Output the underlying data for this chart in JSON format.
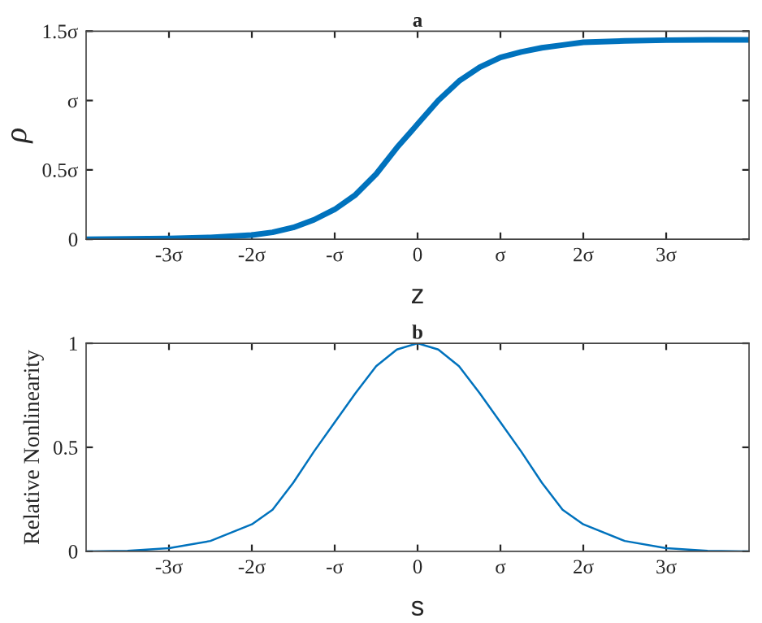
{
  "chart_data": [
    {
      "type": "line",
      "title": "a",
      "xlabel": "z",
      "ylabel": "ρ",
      "x": [
        -4,
        -3.5,
        -3,
        -2.5,
        -2,
        -1.75,
        -1.5,
        -1.25,
        -1,
        -0.75,
        -0.5,
        -0.25,
        0,
        0.25,
        0.5,
        0.75,
        1,
        1.25,
        1.5,
        1.75,
        2,
        2.5,
        3,
        3.5,
        4
      ],
      "series": [
        {
          "color": "#0072bd",
          "values": [
            0,
            0.003,
            0.006,
            0.013,
            0.03,
            0.05,
            0.085,
            0.14,
            0.215,
            0.32,
            0.47,
            0.66,
            0.83,
            1.0,
            1.14,
            1.24,
            1.31,
            1.35,
            1.38,
            1.4,
            1.42,
            1.43,
            1.435,
            1.437,
            1.437
          ]
        }
      ],
      "xlim": [
        -4,
        4
      ],
      "ylim": [
        0,
        1.5
      ],
      "xticks": [
        {
          "value": -3,
          "label": "-3σ"
        },
        {
          "value": -2,
          "label": "-2σ"
        },
        {
          "value": -1,
          "label": "-σ"
        },
        0,
        {
          "value": 1,
          "label": "σ"
        },
        {
          "value": 2,
          "label": "2σ"
        },
        {
          "value": 3,
          "label": "3σ"
        }
      ],
      "yticks": [
        0,
        {
          "value": 0.5,
          "label": "0.5σ"
        },
        {
          "value": 1,
          "label": "σ"
        },
        {
          "value": 1.5,
          "label": "1.5σ"
        }
      ]
    },
    {
      "type": "line",
      "title": "b",
      "xlabel": "s",
      "ylabel": "Relative Nonlinearity",
      "x": [
        -4,
        -3.5,
        -3,
        -2.5,
        -2,
        -1.75,
        -1.5,
        -1.25,
        -1,
        -0.75,
        -0.5,
        -0.25,
        0,
        0.25,
        0.5,
        0.75,
        1,
        1.25,
        1.5,
        1.75,
        2,
        2.5,
        3,
        3.5,
        4
      ],
      "series": [
        {
          "color": "#0072bd",
          "values": [
            0,
            0.003,
            0.015,
            0.05,
            0.13,
            0.2,
            0.33,
            0.48,
            0.62,
            0.76,
            0.89,
            0.97,
            1,
            0.97,
            0.89,
            0.76,
            0.62,
            0.48,
            0.33,
            0.2,
            0.13,
            0.05,
            0.015,
            0.003,
            0
          ]
        }
      ],
      "xlim": [
        -4,
        4
      ],
      "ylim": [
        0,
        1
      ],
      "xticks": [
        {
          "value": -3,
          "label": "-3σ"
        },
        {
          "value": -2,
          "label": "-2σ"
        },
        {
          "value": -1,
          "label": "-σ"
        },
        0,
        {
          "value": 1,
          "label": "σ"
        },
        {
          "value": 2,
          "label": "2σ"
        },
        {
          "value": 3,
          "label": "3σ"
        }
      ],
      "yticks": [
        0,
        0.5,
        1
      ]
    }
  ]
}
